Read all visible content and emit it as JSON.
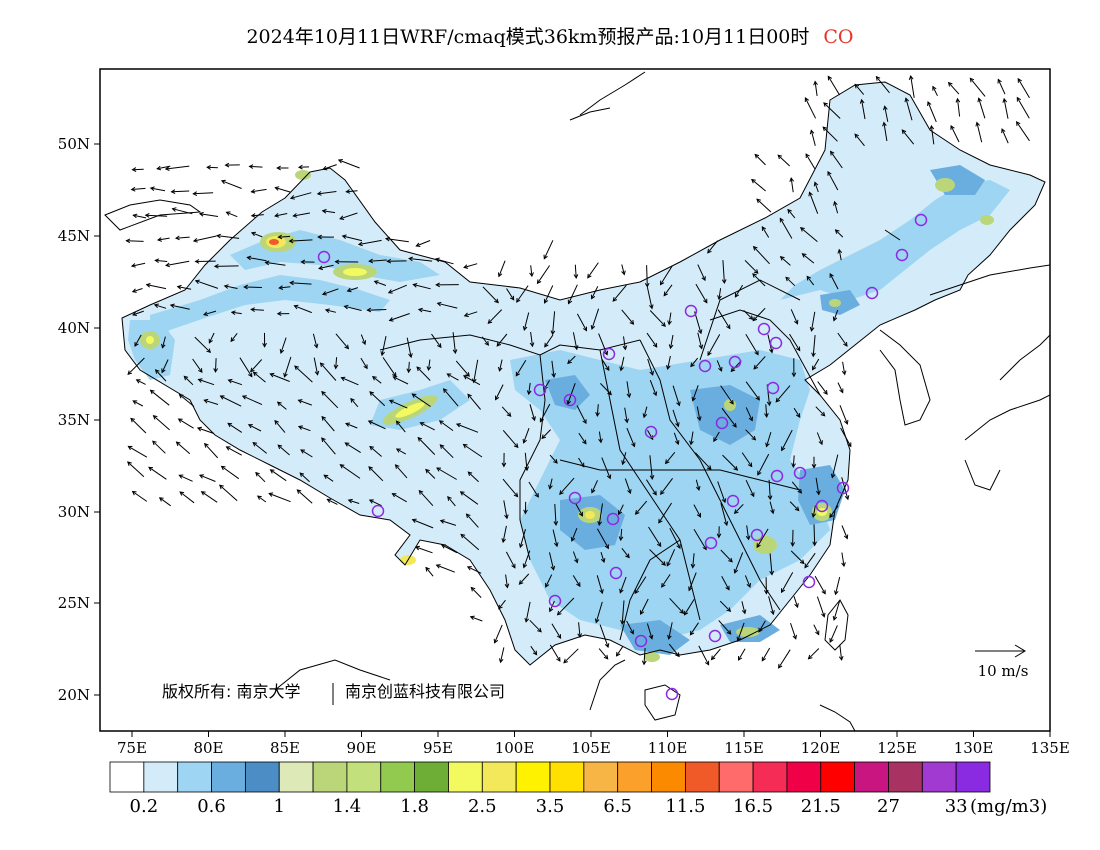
{
  "title": {
    "text": "2024年10月11日WRF/cmaq模式36km预报产品:10月11日00时",
    "species": "CO",
    "species_color": "#e8332a"
  },
  "axes": {
    "lat_labels": [
      "50N",
      "45N",
      "40N",
      "35N",
      "30N",
      "25N",
      "20N"
    ],
    "lon_labels": [
      "75E",
      "80E",
      "85E",
      "90E",
      "95E",
      "100E",
      "105E",
      "110E",
      "115E",
      "120E",
      "125E",
      "130E",
      "135E"
    ]
  },
  "wind_reference": {
    "label": "10 m/s"
  },
  "copyright": {
    "text_a": "版权所有: 南京大学",
    "text_b": "南京创蓝科技有限公司"
  },
  "colorbar": {
    "unit": "(mg/m3)",
    "colors": [
      "#ffffff",
      "#d4ecf9",
      "#9dd5f2",
      "#6aaedf",
      "#4b8dc4",
      "#dde9b6",
      "#bbd679",
      "#c2e07b",
      "#92c94f",
      "#6fae36",
      "#f2fa60",
      "#f3e85a",
      "#fff200",
      "#ffe000",
      "#f7b545",
      "#fba12b",
      "#fb8a00",
      "#f05a28",
      "#ff6b6b",
      "#f52c56",
      "#f00046",
      "#ff0000",
      "#c8157f",
      "#a83262",
      "#a13ad0",
      "#8a2be2"
    ],
    "labels": [
      "0.2",
      "0.6",
      "1",
      "1.4",
      "1.8",
      "2.5",
      "3.5",
      "6.5",
      "11.5",
      "16.5",
      "21.5",
      "27",
      "33"
    ]
  }
}
